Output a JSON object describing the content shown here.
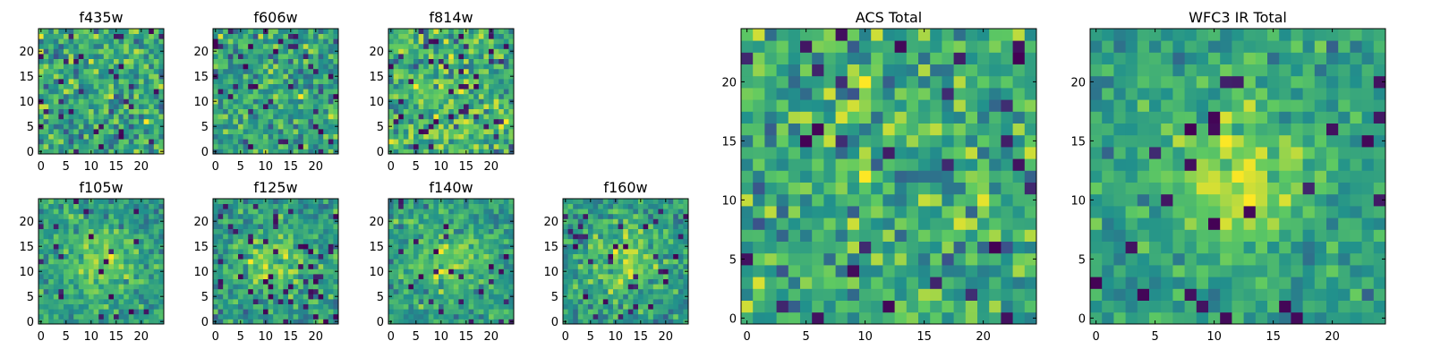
{
  "chart_data": [
    {
      "type": "heatmap",
      "title": "f435w",
      "grid_size": 25,
      "xlim": [
        0,
        24
      ],
      "ylim": [
        0,
        24
      ],
      "xticks": [
        0,
        5,
        10,
        15,
        20
      ],
      "yticks": [
        0,
        5,
        10,
        15,
        20
      ],
      "xtick_labels": [
        "0",
        "5",
        "10",
        "15",
        "20"
      ],
      "ytick_labels": [
        "0",
        "5",
        "10",
        "15",
        "20"
      ],
      "pattern": "noise",
      "seed": 11,
      "peak": 0.0,
      "sigma": 6.0,
      "noise": 1.0,
      "dark_frac": 0.06
    },
    {
      "type": "heatmap",
      "title": "f606w",
      "grid_size": 25,
      "xlim": [
        0,
        24
      ],
      "ylim": [
        0,
        24
      ],
      "xticks": [
        0,
        5,
        10,
        15,
        20
      ],
      "yticks": [
        0,
        5,
        10,
        15,
        20
      ],
      "xtick_labels": [
        "0",
        "5",
        "10",
        "15",
        "20"
      ],
      "ytick_labels": [
        "0",
        "5",
        "10",
        "15",
        "20"
      ],
      "pattern": "noise",
      "seed": 23,
      "peak": 0.1,
      "sigma": 6.0,
      "noise": 1.0,
      "dark_frac": 0.05
    },
    {
      "type": "heatmap",
      "title": "f814w",
      "grid_size": 25,
      "xlim": [
        0,
        24
      ],
      "ylim": [
        0,
        24
      ],
      "xticks": [
        0,
        5,
        10,
        15,
        20
      ],
      "yticks": [
        0,
        5,
        10,
        15,
        20
      ],
      "xtick_labels": [
        "0",
        "5",
        "10",
        "15",
        "20"
      ],
      "ytick_labels": [
        "0",
        "5",
        "10",
        "15",
        "20"
      ],
      "pattern": "noise",
      "seed": 37,
      "peak": 0.1,
      "sigma": 6.0,
      "noise": 1.0,
      "dark_frac": 0.06
    },
    {
      "type": "heatmap",
      "title": "f105w",
      "grid_size": 25,
      "xlim": [
        0,
        24
      ],
      "ylim": [
        0,
        24
      ],
      "xticks": [
        0,
        5,
        10,
        15,
        20
      ],
      "yticks": [
        0,
        5,
        10,
        15,
        20
      ],
      "xtick_labels": [
        "0",
        "5",
        "10",
        "15",
        "20"
      ],
      "ytick_labels": [
        "0",
        "5",
        "10",
        "15",
        "20"
      ],
      "pattern": "source",
      "seed": 41,
      "peak": 0.5,
      "sigma": 5.0,
      "noise": 0.8,
      "dark_frac": 0.03
    },
    {
      "type": "heatmap",
      "title": "f125w",
      "grid_size": 25,
      "xlim": [
        0,
        24
      ],
      "ylim": [
        0,
        24
      ],
      "xticks": [
        0,
        5,
        10,
        15,
        20
      ],
      "yticks": [
        0,
        5,
        10,
        15,
        20
      ],
      "xtick_labels": [
        "0",
        "5",
        "10",
        "15",
        "20"
      ],
      "ytick_labels": [
        "0",
        "5",
        "10",
        "15",
        "20"
      ],
      "pattern": "source",
      "seed": 53,
      "peak": 0.45,
      "sigma": 5.0,
      "noise": 0.9,
      "dark_frac": 0.08
    },
    {
      "type": "heatmap",
      "title": "f140w",
      "grid_size": 25,
      "xlim": [
        0,
        24
      ],
      "ylim": [
        0,
        24
      ],
      "xticks": [
        0,
        5,
        10,
        15,
        20
      ],
      "yticks": [
        0,
        5,
        10,
        15,
        20
      ],
      "xtick_labels": [
        "0",
        "5",
        "10",
        "15",
        "20"
      ],
      "ytick_labels": [
        "0",
        "5",
        "10",
        "15",
        "20"
      ],
      "pattern": "source",
      "seed": 67,
      "peak": 0.45,
      "sigma": 5.0,
      "noise": 0.8,
      "dark_frac": 0.04
    },
    {
      "type": "heatmap",
      "title": "f160w",
      "grid_size": 25,
      "xlim": [
        0,
        24
      ],
      "ylim": [
        0,
        24
      ],
      "xticks": [
        0,
        5,
        10,
        15,
        20
      ],
      "yticks": [
        0,
        5,
        10,
        15,
        20
      ],
      "xtick_labels": [
        "0",
        "5",
        "10",
        "15",
        "20"
      ],
      "ytick_labels": [
        "0",
        "5",
        "10",
        "15",
        "20"
      ],
      "pattern": "source",
      "seed": 79,
      "peak": 0.5,
      "sigma": 5.0,
      "noise": 0.9,
      "dark_frac": 0.06
    },
    {
      "type": "heatmap",
      "title": "ACS Total",
      "grid_size": 25,
      "xlim": [
        0,
        24
      ],
      "ylim": [
        0,
        24
      ],
      "xticks": [
        0,
        5,
        10,
        15,
        20
      ],
      "yticks": [
        0,
        5,
        10,
        15,
        20
      ],
      "xtick_labels": [
        "0",
        "5",
        "10",
        "15",
        "20"
      ],
      "ytick_labels": [
        "0",
        "5",
        "10",
        "15",
        "20"
      ],
      "pattern": "noise",
      "seed": 97,
      "peak": 0.1,
      "sigma": 6.0,
      "noise": 1.0,
      "dark_frac": 0.045
    },
    {
      "type": "heatmap",
      "title": "WFC3 IR Total",
      "grid_size": 25,
      "xlim": [
        0,
        24
      ],
      "ylim": [
        0,
        24
      ],
      "xticks": [
        0,
        5,
        10,
        15,
        20
      ],
      "yticks": [
        0,
        5,
        10,
        15,
        20
      ],
      "xtick_labels": [
        "0",
        "5",
        "10",
        "15",
        "20"
      ],
      "ytick_labels": [
        "0",
        "5",
        "10",
        "15",
        "20"
      ],
      "pattern": "source",
      "seed": 113,
      "peak": 0.6,
      "sigma": 4.5,
      "noise": 0.7,
      "dark_frac": 0.045
    }
  ],
  "colormap": [
    "#440154",
    "#3b528b",
    "#21918c",
    "#5ec962",
    "#fde725"
  ]
}
